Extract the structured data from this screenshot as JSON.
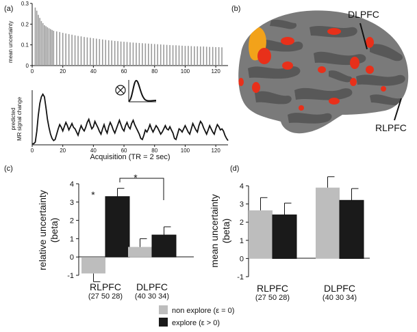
{
  "panels": {
    "a": {
      "label": "(a)",
      "top_ylabel": "mean uncertainty",
      "bottom_ylabel": [
        "predicted",
        "MR signal change"
      ],
      "xlabel": "Acquisition (TR = 2 sec)",
      "convolve_symbol": "⊗"
    },
    "b": {
      "label": "(b)",
      "region_labels": [
        "DLPFC",
        "RLPFC"
      ]
    },
    "c": {
      "label": "(c)",
      "ylabel": [
        "relative uncertainty",
        "(beta)"
      ],
      "significance_star": "*"
    },
    "d": {
      "label": "(d)",
      "ylabel": [
        "mean uncertainty",
        "(beta)"
      ]
    }
  },
  "legend": {
    "items": [
      {
        "label": "non explore (ε = 0)",
        "color": "#bdbdbd"
      },
      {
        "label": "explore (ε > 0)",
        "color": "#1a1a1a"
      }
    ]
  },
  "colors": {
    "non_explore": "#bdbdbd",
    "explore": "#1a1a1a",
    "brain_gray": "#7a7a7a",
    "activation": "#e8301a"
  },
  "chart_data": [
    {
      "id": "a-top",
      "type": "bar",
      "title": "",
      "xlabel": "",
      "ylabel": "mean uncertainty",
      "xlim": [
        0,
        128
      ],
      "ylim": [
        0,
        0.3
      ],
      "xticks": [
        0,
        20,
        40,
        60,
        80,
        100,
        120
      ],
      "yticks": [
        0,
        0.1,
        0.2,
        0.3
      ],
      "ytick_labels": [
        "0",
        "0.1",
        "0.2",
        "0.3"
      ],
      "x": [
        2,
        3,
        4,
        5,
        6,
        7,
        8,
        9,
        10,
        11,
        12,
        13,
        14,
        16,
        18,
        20,
        22,
        24,
        26,
        28,
        30,
        32,
        34,
        36,
        38,
        40,
        42,
        44,
        46,
        48,
        50,
        52,
        54,
        56,
        58,
        60,
        62,
        64,
        66,
        68,
        70,
        72,
        74,
        76,
        78,
        80,
        82,
        84,
        86,
        88,
        90,
        92,
        94,
        96,
        98,
        100,
        102,
        104,
        106,
        108,
        110,
        112,
        114,
        116,
        118,
        120,
        122,
        124
      ],
      "values": [
        0.28,
        0.265,
        0.245,
        0.23,
        0.215,
        0.205,
        0.195,
        0.19,
        0.185,
        0.18,
        0.176,
        0.172,
        0.168,
        0.165,
        0.162,
        0.158,
        0.155,
        0.152,
        0.149,
        0.146,
        0.143,
        0.141,
        0.138,
        0.136,
        0.134,
        0.132,
        0.13,
        0.128,
        0.126,
        0.124,
        0.122,
        0.121,
        0.119,
        0.118,
        0.116,
        0.115,
        0.114,
        0.112,
        0.111,
        0.11,
        0.109,
        0.108,
        0.107,
        0.106,
        0.105,
        0.104,
        0.103,
        0.102,
        0.101,
        0.1,
        0.099,
        0.098,
        0.098,
        0.097,
        0.096,
        0.095,
        0.095,
        0.094,
        0.093,
        0.093,
        0.092,
        0.092,
        0.091,
        0.09,
        0.09,
        0.089,
        0.089,
        0.088
      ]
    },
    {
      "id": "a-bottom",
      "type": "line",
      "title": "",
      "xlabel": "Acquisition (TR = 2 sec)",
      "ylabel": "predicted MR signal change",
      "xlim": [
        0,
        128
      ],
      "ylim": [
        0,
        1
      ],
      "xticks": [
        0,
        20,
        40,
        60,
        80,
        100,
        120
      ],
      "x": [
        0,
        1,
        2,
        3,
        4,
        5,
        6,
        7,
        8,
        9,
        10,
        11,
        12,
        13,
        14,
        15,
        16,
        17,
        18,
        19,
        20,
        21,
        22,
        23,
        24,
        25,
        26,
        27,
        28,
        29,
        30,
        31,
        32,
        33,
        34,
        35,
        36,
        37,
        38,
        39,
        40,
        41,
        42,
        43,
        44,
        45,
        46,
        47,
        48,
        49,
        50,
        51,
        52,
        53,
        54,
        55,
        56,
        57,
        58,
        59,
        60,
        61,
        62,
        63,
        64,
        65,
        66,
        67,
        68,
        69,
        70,
        71,
        72,
        73,
        74,
        75,
        76,
        77,
        78,
        79,
        80,
        81,
        82,
        83,
        84,
        85,
        86,
        87,
        88,
        89,
        90,
        91,
        92,
        93,
        94,
        95,
        96,
        97,
        98,
        99,
        100,
        101,
        102,
        103,
        104,
        105,
        106,
        107,
        108,
        109,
        110,
        111,
        112,
        113,
        114,
        115,
        116,
        117,
        118,
        119,
        120,
        121,
        122,
        123,
        124,
        125,
        126,
        127,
        128
      ],
      "values": [
        0.02,
        0.02,
        0.05,
        0.25,
        0.55,
        0.78,
        0.9,
        0.95,
        0.9,
        0.7,
        0.48,
        0.32,
        0.2,
        0.12,
        0.08,
        0.1,
        0.2,
        0.3,
        0.38,
        0.33,
        0.26,
        0.34,
        0.42,
        0.36,
        0.28,
        0.34,
        0.4,
        0.33,
        0.3,
        0.24,
        0.18,
        0.28,
        0.36,
        0.3,
        0.26,
        0.33,
        0.42,
        0.48,
        0.38,
        0.3,
        0.34,
        0.44,
        0.38,
        0.32,
        0.25,
        0.2,
        0.3,
        0.38,
        0.28,
        0.22,
        0.34,
        0.42,
        0.36,
        0.28,
        0.22,
        0.3,
        0.38,
        0.46,
        0.38,
        0.3,
        0.26,
        0.36,
        0.42,
        0.34,
        0.3,
        0.4,
        0.46,
        0.38,
        0.32,
        0.26,
        0.2,
        0.12,
        0.1,
        0.18,
        0.28,
        0.24,
        0.3,
        0.38,
        0.3,
        0.24,
        0.3,
        0.36,
        0.32,
        0.26,
        0.2,
        0.24,
        0.3,
        0.36,
        0.3,
        0.28,
        0.34,
        0.28,
        0.22,
        0.12,
        0.1,
        0.2,
        0.3,
        0.28,
        0.24,
        0.3,
        0.36,
        0.3,
        0.24,
        0.2,
        0.3,
        0.4,
        0.34,
        0.28,
        0.24,
        0.36,
        0.44,
        0.4,
        0.32,
        0.26,
        0.2,
        0.28,
        0.36,
        0.3,
        0.24,
        0.2,
        0.3,
        0.38,
        0.34,
        0.28,
        0.3,
        0.26,
        0.18,
        0.12,
        0.08
      ]
    },
    {
      "id": "c",
      "type": "bar",
      "title": "",
      "xlabel": "",
      "ylabel": "relative uncertainty (beta)",
      "ylim": [
        -1,
        4
      ],
      "yticks": [
        -1,
        0,
        1,
        2,
        3,
        4
      ],
      "categories": [
        "RLPFC",
        "DLPFC"
      ],
      "category_coords": [
        "(27 50 28)",
        "(40 30 34)"
      ],
      "series": [
        {
          "name": "non explore (ε = 0)",
          "values": [
            -0.9,
            0.55
          ],
          "errors": [
            0.45,
            0.45
          ]
        },
        {
          "name": "explore (ε > 0)",
          "values": [
            3.3,
            1.2
          ],
          "errors": [
            0.45,
            0.45
          ]
        }
      ]
    },
    {
      "id": "d",
      "type": "bar",
      "title": "",
      "xlabel": "",
      "ylabel": "mean uncertainty (beta)",
      "ylim": [
        -1,
        4
      ],
      "yticks": [
        -1,
        0,
        1,
        2,
        3,
        4
      ],
      "categories": [
        "RLPFC",
        "DLPFC"
      ],
      "category_coords": [
        "(27 50 28)",
        "(40 30 34)"
      ],
      "series": [
        {
          "name": "non explore (ε = 0)",
          "values": [
            2.65,
            3.9
          ],
          "errors": [
            0.7,
            0.6
          ]
        },
        {
          "name": "explore (ε > 0)",
          "values": [
            2.4,
            3.2
          ],
          "errors": [
            0.65,
            0.65
          ]
        }
      ]
    }
  ]
}
